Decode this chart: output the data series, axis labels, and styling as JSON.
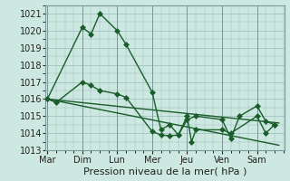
{
  "xlabel": "Pression niveau de la mer( hPa )",
  "background_color": "#cce8e0",
  "plot_bg_color": "#cce8e0",
  "grid_color": "#99bbbb",
  "line_color": "#1a5c2a",
  "ylim": [
    1013,
    1021.5
  ],
  "yticks": [
    1013,
    1014,
    1015,
    1016,
    1017,
    1018,
    1019,
    1020,
    1021
  ],
  "day_labels": [
    "Mar",
    "Dim",
    "Lun",
    "Mer",
    "Jeu",
    "Ven",
    "Sam"
  ],
  "day_positions": [
    0,
    40,
    80,
    120,
    160,
    200,
    240
  ],
  "xlim": [
    -2,
    272
  ],
  "series1_x": [
    0,
    40,
    50,
    60,
    80,
    90,
    120,
    130,
    140,
    150,
    160,
    170,
    200,
    210,
    220,
    240,
    250,
    260
  ],
  "series1_y": [
    1016.0,
    1020.2,
    1019.8,
    1021.0,
    1020.0,
    1019.2,
    1016.4,
    1014.2,
    1014.5,
    1013.9,
    1014.8,
    1015.0,
    1014.8,
    1013.7,
    1015.0,
    1015.6,
    1014.7,
    1014.5
  ],
  "series2_x": [
    0,
    10,
    40,
    50,
    60,
    80,
    90,
    120,
    130,
    140,
    150,
    160,
    165,
    170,
    200,
    210,
    240,
    250,
    260
  ],
  "series2_y": [
    1016.0,
    1015.8,
    1017.0,
    1016.8,
    1016.5,
    1016.3,
    1016.1,
    1014.1,
    1013.9,
    1013.85,
    1013.9,
    1015.0,
    1013.5,
    1014.2,
    1014.2,
    1014.0,
    1015.0,
    1014.0,
    1014.5
  ],
  "trend1_x": [
    0,
    265
  ],
  "trend1_y": [
    1016.0,
    1014.6
  ],
  "trend2_x": [
    0,
    265
  ],
  "trend2_y": [
    1016.0,
    1013.3
  ],
  "marker_size": 3.0,
  "linewidth": 1.0,
  "xlabel_fontsize": 8,
  "tick_fontsize": 7
}
